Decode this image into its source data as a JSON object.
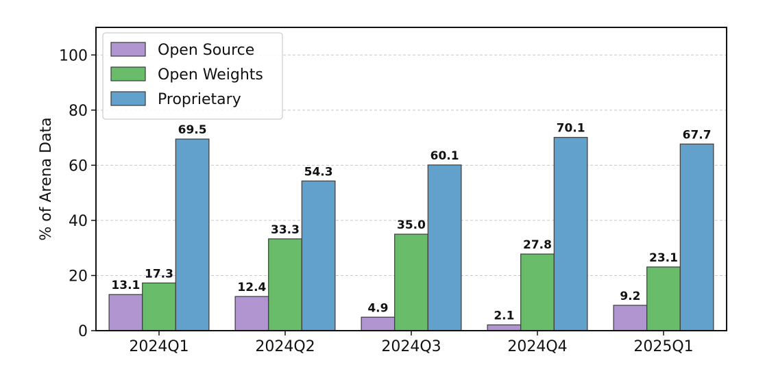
{
  "chart_data": {
    "type": "bar",
    "title": "",
    "xlabel": "",
    "ylabel": "% of Arena Data",
    "ylim": [
      0,
      110
    ],
    "yticks": [
      "0",
      "20",
      "40",
      "60",
      "80",
      "100"
    ],
    "grid": "horizontal dashed",
    "legend_position": "top-left",
    "categories": [
      "2024Q1",
      "2024Q2",
      "2024Q3",
      "2024Q4",
      "2025Q1"
    ],
    "series": [
      {
        "name": "Open Source",
        "color": "#b195d0",
        "values": [
          13.1,
          12.4,
          4.9,
          2.1,
          9.2
        ],
        "labels": [
          "13.1",
          "12.4",
          "4.9",
          "2.1",
          "9.2"
        ]
      },
      {
        "name": "Open Weights",
        "color": "#69bc6a",
        "values": [
          17.3,
          33.3,
          35.0,
          27.8,
          23.1
        ],
        "labels": [
          "17.3",
          "33.3",
          "35.0",
          "27.8",
          "23.1"
        ]
      },
      {
        "name": "Proprietary",
        "color": "#63a1cd",
        "values": [
          69.5,
          54.3,
          60.1,
          70.1,
          67.7
        ],
        "labels": [
          "69.5",
          "54.3",
          "60.1",
          "70.1",
          "67.7"
        ]
      }
    ]
  }
}
